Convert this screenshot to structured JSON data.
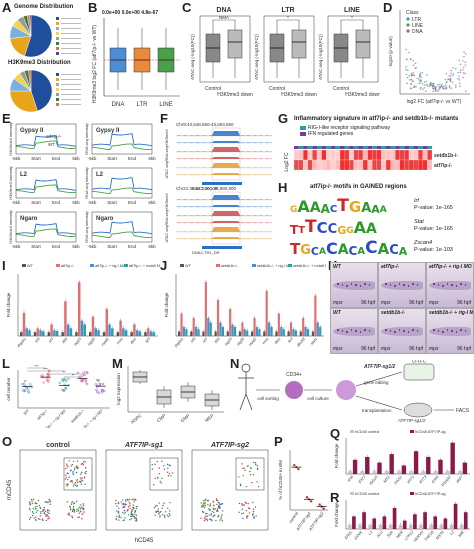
{
  "labels": {
    "A": "A",
    "B": "B",
    "C": "C",
    "D": "D",
    "E": "E",
    "F": "F",
    "G": "G",
    "H": "H",
    "I": "I",
    "J": "J",
    "K": "K",
    "L": "L",
    "M": "M",
    "N": "N",
    "O": "O",
    "P": "P",
    "Q": "Q",
    "R": "R"
  },
  "panelA": {
    "title1": "Genome Distribution",
    "title2": "H3K9me3 Distribution",
    "colors": [
      "#1f4e9c",
      "#e8a51a",
      "#7ab0e0",
      "#f5d34a",
      "#9a9a9a",
      "#3a7a3a",
      "#e66f3a",
      "#4a4aa0"
    ],
    "genome_slices": [
      0.55,
      0.18,
      0.1,
      0.06,
      0.05,
      0.03,
      0.02,
      0.01
    ],
    "h3_slices": [
      0.45,
      0.3,
      0.1,
      0.06,
      0.04,
      0.03,
      0.02
    ]
  },
  "panelB": {
    "ylabel": "H3K9me3 log2 FC (atf7ip-/- vs WT)",
    "pvals": "0.0e+00 0.0e+00 4.8e-67",
    "categories": [
      "DNA",
      "LTR",
      "LINE"
    ],
    "colors": [
      "#4a8fd4",
      "#e88a3a",
      "#4aa04a"
    ]
  },
  "panelC": {
    "groups": [
      "DNA",
      "LTR",
      "LINE"
    ],
    "pval": "NMA",
    "ylabel": "ATAC-seq (-log10(FC))",
    "xcats": [
      "Control",
      "H3K9me3 down"
    ]
  },
  "panelD": {
    "legend_title": "Class",
    "legend": [
      {
        "name": "LTR",
        "color": "#4a8fd4"
      },
      {
        "name": "LINE",
        "color": "#4aa04a"
      },
      {
        "name": "DNA",
        "color": "#c94a9a"
      }
    ],
    "xlabel": "log2 FC (atf7ip-/- vs WT)",
    "ylabel": "-log10 (p-value)"
  },
  "panelE": {
    "rows": [
      "Gypsy II",
      "L2",
      "Ngaro"
    ],
    "left_ylabel": "H3K9me3 intensity",
    "right_ylabel": "RNA seq intensity",
    "xticks": [
      "-5kb",
      "Start",
      "End",
      "5kb"
    ],
    "legend": [
      "atf7ip-/-",
      "WT"
    ]
  },
  "panelF": {
    "loc1": "Chr9:43,648,550-43,653,550",
    "loc2": "Chr21:35,677,800-35,680,800",
    "gene1": "DNA-2-20_DR",
    "gene2": "DNA2-TR1_DR",
    "tracks": [
      "H3K9me3",
      "RNA seq",
      "ATAC seq"
    ]
  },
  "panelG": {
    "title": "Inflammatory signature in atf7ip-/- and setdb1b-/- mutants",
    "legend": [
      {
        "name": "RIG-I-like receptor signaling pathway",
        "color": "#2aa0a0"
      },
      {
        "name": "IFN regulated genes",
        "color": "#7a3a9a"
      }
    ],
    "ylabel": "Log2 FC",
    "rows": [
      "setdb1b-/-",
      "atf7ip-/-"
    ]
  },
  "panelH": {
    "title": "atf7ip-/- motifs in GAINED regions",
    "motifs": [
      {
        "name": "Irf",
        "pval": "P-value: 1e-165",
        "seq": "GAAACTGAAA"
      },
      {
        "name": "Stat",
        "pval": "P-value: 1e-165",
        "seq": "TTTCCGGAA"
      },
      {
        "name": "Zscan4",
        "pval": "P-value: 1e-103",
        "seq": "TGCACACACACA"
      }
    ]
  },
  "panelI": {
    "ylabel": "Fold change",
    "legend": [
      "WT",
      "atf7ip-/-",
      "atf7ip-/- + rig-I MO",
      "atf7ip-/- + mda5 MO"
    ],
    "colors": [
      "#555555",
      "#e07070",
      "#4a8fd4",
      "#2aa0a0"
    ],
    "categories": [
      "ifnphi1",
      "irf3",
      "irf7",
      "ifit5",
      "isg15",
      "isg20",
      "rsad2",
      "mxa",
      "ifih1",
      "tlr3"
    ],
    "series": [
      {
        "name": "WT",
        "values": [
          1,
          1,
          1,
          1,
          1,
          1,
          1,
          1,
          1,
          1
        ]
      },
      {
        "name": "atf7ip-/-",
        "values": [
          6,
          2,
          3,
          9,
          14,
          5,
          7,
          4,
          3,
          2
        ]
      },
      {
        "name": "atf7ip-/- + rig-I MO",
        "values": [
          2,
          1.5,
          1.5,
          3,
          4,
          2,
          3,
          2,
          1.5,
          1.2
        ]
      },
      {
        "name": "atf7ip-/- + mda5 MO",
        "values": [
          1.5,
          1.2,
          1.3,
          2,
          3,
          1.5,
          2,
          1.5,
          1.2,
          1
        ]
      }
    ]
  },
  "panelJ": {
    "ylabel": "Fold change",
    "legend": [
      "WT",
      "setdb1b-/-",
      "setdb1b-/- + rig-I MO",
      "setdb1b-/- + mda5 MO"
    ],
    "colors": [
      "#555555",
      "#e07070",
      "#4a8fd4",
      "#2aa0a0"
    ],
    "categories": [
      "ifnphi1",
      "irf3",
      "irf7",
      "ifit5",
      "isg15",
      "isg20",
      "rsad2",
      "mxa",
      "ifih1",
      "tlr3",
      "dhx58",
      "stat1"
    ],
    "series": [
      {
        "name": "WT",
        "values": [
          1,
          1,
          1,
          1,
          1,
          1,
          1,
          1,
          1,
          1,
          1,
          1
        ]
      },
      {
        "name": "setdb1b-/-",
        "values": [
          5,
          4,
          12,
          8,
          6,
          3,
          4,
          10,
          5,
          3,
          4,
          9
        ]
      },
      {
        "name": "setdb1b-/- + rig-I MO",
        "values": [
          2,
          2,
          4,
          3,
          2.5,
          1.5,
          2,
          3,
          2,
          1.5,
          2,
          3
        ]
      },
      {
        "name": "setdb1b-/- + mda5 MO",
        "values": [
          1.5,
          1.5,
          3,
          2,
          2,
          1.2,
          1.5,
          2,
          1.5,
          1.2,
          1.5,
          2
        ]
      }
    ]
  },
  "panelK": {
    "tiles": [
      {
        "title": "WT",
        "stage": "96 hpf",
        "gene": "mpx"
      },
      {
        "title": "atf7ip-/-",
        "stage": "96 hpf",
        "gene": "mpx"
      },
      {
        "title": "atf7ip-/- + rig-I MO",
        "stage": "96 hpf",
        "gene": "mpx"
      },
      {
        "title": "WT",
        "stage": "96 hpf",
        "gene": "mpx"
      },
      {
        "title": "setdb1b-/-",
        "stage": "96 hpf",
        "gene": "mpx"
      },
      {
        "title": "setdb1b-/- + rig-I MO",
        "stage": "96 hpf",
        "gene": "mpx"
      }
    ]
  },
  "panelL": {
    "ylabel": "cell number",
    "categories": [
      "WT",
      "atf7ip-/-",
      "atf7ip-/- + rig-I MO",
      "setdb1b-/-",
      "setdb1b-/- + rig-I MO"
    ],
    "means": [
      90,
      130,
      95,
      125,
      92
    ],
    "colors": [
      "#4a8fd4",
      "#e07070",
      "#2aa0a0",
      "#c94a9a",
      "#9a4ac9"
    ],
    "sig": [
      "***",
      "***",
      "**",
      "**"
    ]
  },
  "panelM": {
    "ylabel": "log2 expression",
    "categories": [
      "HSPC",
      "CMP",
      "GMP",
      "MEP"
    ]
  },
  "panelN": {
    "steps": [
      "cell sorting",
      "CD34+",
      "cell culture",
      "ATF7IP-sg1/2",
      "gene editing",
      "CFU-C",
      "transplantation",
      "ATF7IP-sg1/2",
      "FACS"
    ]
  },
  "panelO": {
    "titles": [
      "control",
      "ATF7IP-sg1",
      "ATF7IP-sg2"
    ],
    "xlabel": "hCD45",
    "ylabel": "mCD45"
  },
  "panelP": {
    "ylabel": "% of hCD45+ in BM",
    "categories": [
      "control",
      "ATF7IP-sg1",
      "ATF7IP-sg2"
    ],
    "values": [
      10,
      2.5,
      0.8
    ]
  },
  "panelQ": {
    "ylabel": "Fold change",
    "legend": [
      "hCD45 control",
      "hCD45 ATF7IP-sg"
    ],
    "colors": [
      "#c4c4c4",
      "#8b1a4a"
    ],
    "categories": [
      "IFI6",
      "IFI27",
      "ISG15",
      "MX1",
      "OAS1",
      "IFIT1",
      "IFIT3",
      "IFI44",
      "RSAD2",
      "IRF7"
    ],
    "series": [
      {
        "name": "hCD45 control",
        "values": [
          1,
          1,
          1,
          1,
          1,
          1,
          1,
          1,
          1,
          1
        ]
      },
      {
        "name": "hCD45 ATF7IP-sg",
        "values": [
          5,
          6,
          4,
          7,
          3,
          8,
          6,
          5,
          11,
          4
        ]
      }
    ]
  },
  "panelR": {
    "ylabel": "Fold change",
    "legend": [
      "hCD45 control",
      "hCD45 ATF7IP-sg"
    ],
    "colors": [
      "#c4c4c4",
      "#8b1a4a"
    ],
    "categories": [
      "ERVL",
      "ERVK",
      "L1",
      "ALU",
      "SVA",
      "MER",
      "LTR12",
      "HERVH",
      "THE1B",
      "MSTA",
      "L2",
      "MIR"
    ],
    "series": [
      {
        "name": "hCD45 control",
        "values": [
          1,
          1,
          1,
          1,
          1,
          1,
          1,
          1,
          1,
          1,
          1,
          1
        ]
      },
      {
        "name": "hCD45 ATF7IP-sg",
        "values": [
          3,
          4,
          2.5,
          3,
          5,
          2,
          3.5,
          4,
          3,
          2.5,
          6,
          4
        ]
      }
    ]
  }
}
